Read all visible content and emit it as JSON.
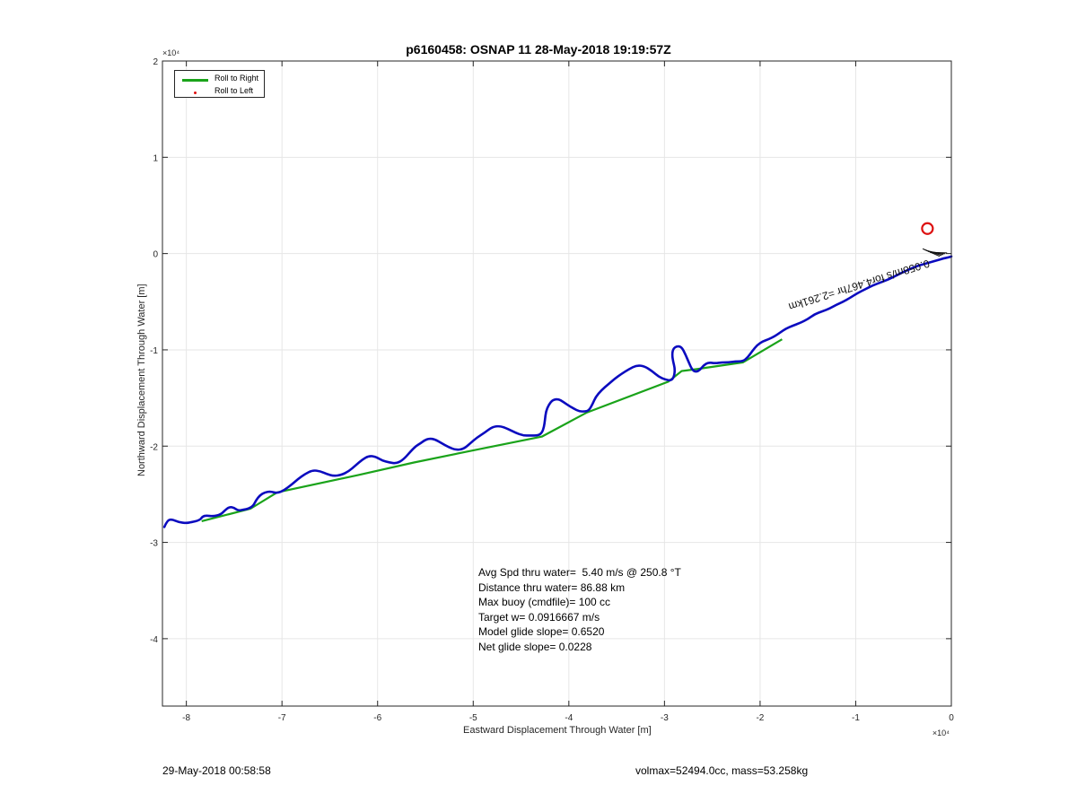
{
  "chart_data": {
    "type": "line",
    "title": "p6160458: OSNAP 11 28-May-2018 19:19:57Z",
    "xlabel": "Eastward Displacement Through Water [m]",
    "ylabel": "Northward Displacement Through Water [m]",
    "x_multiplier": "×10⁴",
    "y_multiplier": "×10⁴",
    "xlim": [
      -82500,
      0
    ],
    "ylim": [
      -47000,
      20000
    ],
    "xticks": [
      -80000,
      -70000,
      -60000,
      -50000,
      -40000,
      -30000,
      -20000,
      -10000,
      0
    ],
    "xtick_labels": [
      "-8",
      "-7",
      "-6",
      "-5",
      "-4",
      "-3",
      "-2",
      "-1",
      "0"
    ],
    "yticks": [
      -40000,
      -30000,
      -20000,
      -10000,
      0,
      10000,
      20000
    ],
    "ytick_labels": [
      "-4",
      "-3",
      "-2",
      "-1",
      "0",
      "1",
      "2"
    ],
    "grid": true,
    "legend_position": "top-left",
    "legend": [
      "Roll to Right",
      "Roll to Left"
    ],
    "colors": {
      "roll_right": "#1aa31a",
      "roll_left": "#e01010",
      "track": "#0b0bbf",
      "marker": "#dd1111"
    },
    "series": [
      {
        "name": "Roll to Right",
        "x": [
          -78400,
          -73300,
          -70500,
          -62000,
          -56200,
          -49800,
          -42800,
          -38100,
          -29600,
          -28200,
          -26600,
          -21800,
          -17700
        ],
        "y": [
          -27800,
          -26500,
          -24800,
          -23000,
          -21700,
          -20400,
          -19000,
          -16500,
          -13300,
          -12200,
          -12000,
          -11300,
          -8900
        ]
      }
    ],
    "track": {
      "x": [
        -82300,
        -82000,
        -81500,
        -80800,
        -80000,
        -79500,
        -78600,
        -78300,
        -77900,
        -77200,
        -76400,
        -76000,
        -75500,
        -75000,
        -74600,
        -74000,
        -73500,
        -73000,
        -72700,
        -72300,
        -71800,
        -71200,
        -70500,
        -69800,
        -69000,
        -68300,
        -67600,
        -66800,
        -66000,
        -65300,
        -64600,
        -63800,
        -63000,
        -62300,
        -61600,
        -60900,
        -60200,
        -59500,
        -58800,
        -58000,
        -57300,
        -56500,
        -56000,
        -55500,
        -55100,
        -54600,
        -54000,
        -53300,
        -52600,
        -51800,
        -51000,
        -50300,
        -49600,
        -48800,
        -48000,
        -47200,
        -46400,
        -45600,
        -44800,
        -44000,
        -43200,
        -42800,
        -42600,
        -42500,
        -42400,
        -42100,
        -41700,
        -41100,
        -40600,
        -40000,
        -39500,
        -38900,
        -38300,
        -37900,
        -37500,
        -37200,
        -36600,
        -35900,
        -35200,
        -34500,
        -33700,
        -32900,
        -32100,
        -31300,
        -30600,
        -29900,
        -29300,
        -29000,
        -28900,
        -29100,
        -29200,
        -29100,
        -28700,
        -28200,
        -27800,
        -27500,
        -27100,
        -26700,
        -26300,
        -25900,
        -25400,
        -24700,
        -24000,
        -23300,
        -22600,
        -21800,
        -21300,
        -20800,
        -20300,
        -19700,
        -19100,
        -18500,
        -17900,
        -17300,
        -16600,
        -15800,
        -15000,
        -14300,
        -13500,
        -12700,
        -12000,
        -11300,
        -10600,
        -9800,
        -9000,
        -8200,
        -7400,
        -6600,
        -5800,
        -5000,
        -4300,
        -3600,
        -2900,
        -2200,
        -1500,
        -800,
        -300,
        0
      ],
      "y": [
        -28400,
        -27700,
        -27600,
        -27900,
        -28000,
        -27900,
        -27700,
        -27300,
        -27200,
        -27300,
        -27100,
        -26700,
        -26300,
        -26400,
        -26700,
        -26600,
        -26500,
        -26200,
        -25600,
        -25100,
        -24800,
        -24700,
        -24900,
        -24600,
        -24000,
        -23400,
        -22900,
        -22500,
        -22600,
        -22900,
        -23100,
        -23000,
        -22600,
        -22000,
        -21400,
        -21000,
        -21100,
        -21500,
        -21700,
        -21800,
        -21400,
        -20500,
        -20000,
        -19700,
        -19400,
        -19200,
        -19300,
        -19700,
        -20100,
        -20400,
        -20300,
        -19700,
        -19100,
        -18600,
        -18000,
        -17900,
        -18200,
        -18600,
        -18900,
        -18900,
        -18900,
        -18600,
        -18000,
        -17300,
        -16400,
        -15700,
        -15200,
        -15100,
        -15400,
        -15800,
        -16100,
        -16400,
        -16400,
        -16300,
        -15600,
        -14900,
        -14200,
        -13600,
        -13000,
        -12500,
        -12000,
        -11600,
        -11700,
        -12200,
        -12800,
        -13100,
        -13200,
        -12800,
        -12000,
        -11200,
        -10500,
        -9900,
        -9600,
        -9700,
        -10500,
        -11200,
        -12100,
        -12300,
        -12100,
        -11600,
        -11300,
        -11400,
        -11300,
        -11300,
        -11200,
        -11200,
        -10800,
        -10100,
        -9500,
        -9100,
        -8900,
        -8600,
        -8200,
        -7800,
        -7500,
        -7200,
        -6800,
        -6300,
        -6000,
        -5700,
        -5300,
        -5000,
        -4600,
        -4100,
        -3700,
        -3300,
        -3000,
        -2700,
        -2300,
        -1900,
        -1600,
        -1300,
        -1100,
        -900,
        -700,
        -500,
        -400,
        -300
      ]
    },
    "annotations": {
      "rotated_text": "0.058m/s for4.467hr =2.261km",
      "circle_marker": {
        "x": -2500,
        "y": 2600
      }
    },
    "stats_box": [
      "Avg Spd thru water=  5.40 m/s @ 250.8 °T",
      "Distance thru water= 86.88 km",
      "Max buoy (cmdfile)= 100 cc",
      "Target w= 0.0916667 m/s",
      "Model glide slope= 0.6520",
      "Net glide slope= 0.0228"
    ]
  },
  "footer": {
    "left": "29-May-2018 00:58:58",
    "right": "volmax=52494.0cc, mass=53.258kg"
  }
}
